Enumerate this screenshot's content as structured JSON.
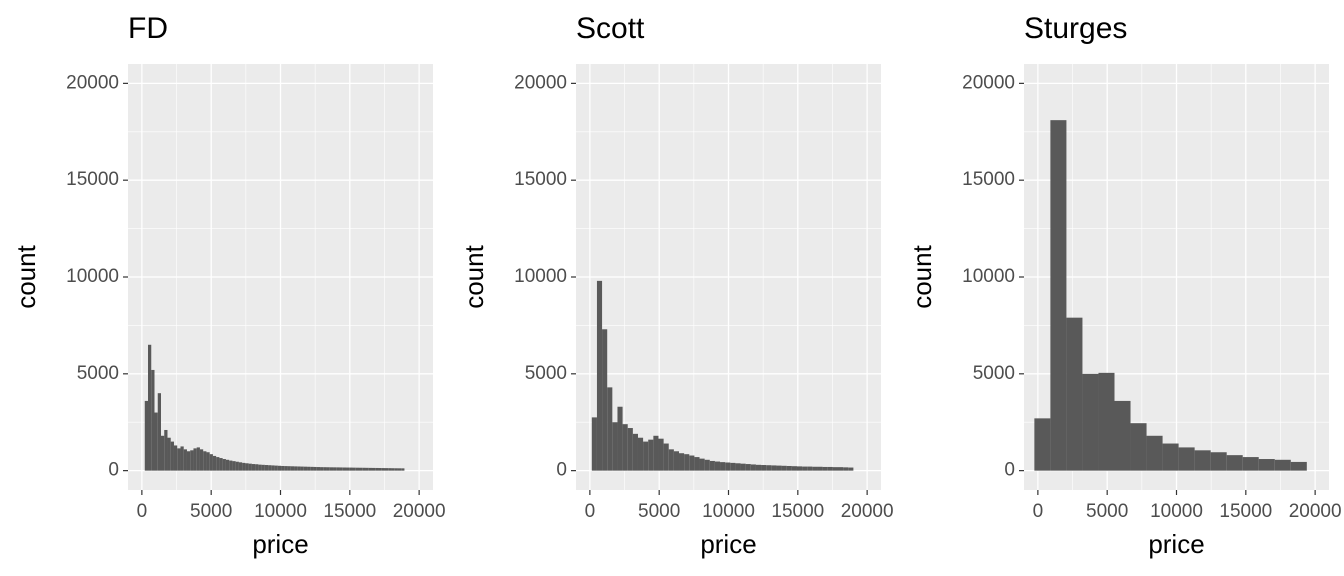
{
  "chart_data": [
    {
      "type": "histogram",
      "title": "FD",
      "x_label": "price",
      "y_label": "count",
      "color": "#595959",
      "grid": true,
      "xlim": [
        -1000,
        21000
      ],
      "ylim": [
        -1000,
        21000
      ],
      "xticks": [
        0,
        5000,
        10000,
        15000,
        20000
      ],
      "yticks": [
        0,
        5000,
        10000,
        15000,
        20000
      ],
      "bins": [
        209,
        443,
        677,
        911,
        1146,
        1380,
        1614,
        1848,
        2082,
        2316,
        2550,
        2785,
        3019,
        3253,
        3487,
        3721,
        3955,
        4189,
        4424,
        4658,
        4892,
        5126,
        5360,
        5594,
        5828,
        6063,
        6297,
        6531,
        6765,
        6999,
        7233,
        7467,
        7701,
        7936,
        8170,
        8404,
        8638,
        8872,
        9106,
        9340,
        9575,
        9809,
        10043,
        10277,
        10511,
        10745,
        10979,
        11214,
        11448,
        11682,
        11916,
        12150,
        12384,
        12618,
        12852,
        13087,
        13321,
        13555,
        13789,
        14023,
        14257,
        14491,
        14726,
        14960,
        15194,
        15428,
        15662,
        15896,
        16130,
        16365,
        16599,
        16833,
        17067,
        17301,
        17535,
        17769,
        18004,
        18238,
        18472,
        18706,
        18940
      ],
      "values": [
        3600,
        6500,
        5200,
        3000,
        4000,
        1800,
        2100,
        1700,
        1500,
        1300,
        1150,
        1250,
        1100,
        1000,
        1050,
        1150,
        1200,
        1100,
        1000,
        950,
        850,
        760,
        700,
        650,
        600,
        560,
        520,
        490,
        460,
        430,
        400,
        380,
        360,
        340,
        330,
        310,
        300,
        290,
        280,
        270,
        260,
        250,
        240,
        235,
        230,
        225,
        220,
        215,
        210,
        205,
        200,
        195,
        190,
        185,
        180,
        178,
        175,
        172,
        170,
        168,
        165,
        162,
        160,
        158,
        155,
        152,
        150,
        148,
        145,
        142,
        140,
        138,
        135,
        132,
        130,
        128,
        125,
        122,
        120,
        118
      ]
    },
    {
      "type": "histogram",
      "title": "Scott",
      "x_label": "price",
      "y_label": "count",
      "color": "#595959",
      "grid": true,
      "xlim": [
        -1000,
        21000
      ],
      "ylim": [
        -1000,
        21000
      ],
      "xticks": [
        0,
        5000,
        10000,
        15000,
        20000
      ],
      "yticks": [
        0,
        5000,
        10000,
        15000,
        20000
      ],
      "bins": [
        141,
        511,
        881,
        1251,
        1621,
        1991,
        2361,
        2731,
        3101,
        3471,
        3840,
        4210,
        4580,
        4950,
        5320,
        5690,
        6060,
        6430,
        6800,
        7170,
        7540,
        7910,
        8280,
        8650,
        9020,
        9390,
        9760,
        10130,
        10499,
        10869,
        11239,
        11609,
        11979,
        12349,
        12719,
        13089,
        13459,
        13829,
        14199,
        14569,
        14939,
        15309,
        15678,
        16048,
        16418,
        16788,
        17158,
        17528,
        17898,
        18268,
        18638,
        19008
      ],
      "values": [
        2750,
        9800,
        7300,
        4300,
        2500,
        3300,
        2400,
        2200,
        1900,
        1700,
        1500,
        1600,
        1800,
        1650,
        1400,
        1100,
        1000,
        900,
        850,
        780,
        700,
        620,
        560,
        500,
        470,
        440,
        420,
        400,
        380,
        360,
        340,
        320,
        300,
        290,
        280,
        270,
        260,
        250,
        240,
        230,
        220,
        210,
        210,
        200,
        200,
        190,
        190,
        180,
        180,
        170,
        160
      ]
    },
    {
      "type": "histogram",
      "title": "Sturges",
      "x_label": "price",
      "y_label": "count",
      "color": "#595959",
      "grid": true,
      "xlim": [
        -1000,
        21000
      ],
      "ylim": [
        -1000,
        21000
      ],
      "xticks": [
        0,
        5000,
        10000,
        15000,
        20000
      ],
      "yticks": [
        0,
        5000,
        10000,
        15000,
        20000
      ],
      "bins": [
        -252,
        904,
        2060,
        3216,
        4372,
        5528,
        6684,
        7840,
        8996,
        10152,
        11308,
        12464,
        13620,
        14776,
        15932,
        17088,
        18244,
        19400
      ],
      "values": [
        2700,
        18100,
        7900,
        5000,
        5050,
        3600,
        2450,
        1800,
        1400,
        1200,
        1050,
        950,
        800,
        700,
        600,
        560,
        450
      ]
    }
  ]
}
